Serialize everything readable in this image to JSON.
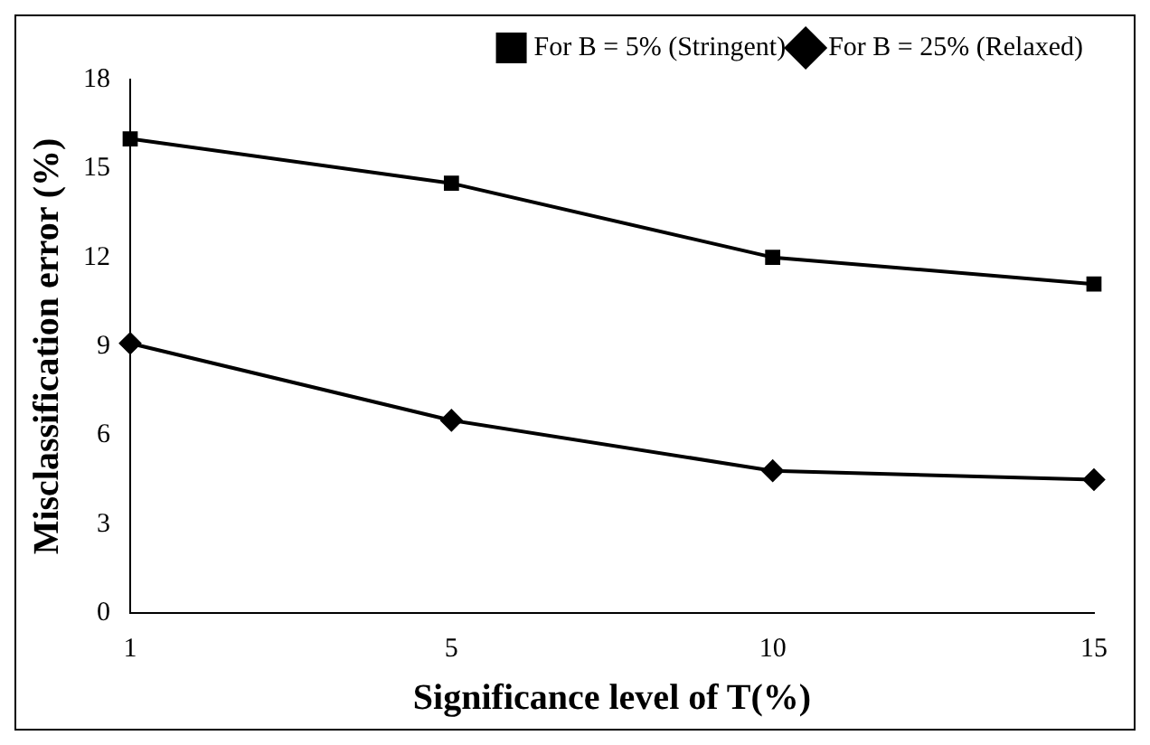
{
  "chart_data": {
    "type": "line",
    "xlabel": "Significance level of T(%)",
    "ylabel": "Misclassification error (%)",
    "categories": [
      "1",
      "5",
      "10",
      "15"
    ],
    "series": [
      {
        "name": "For B = 5% (Stringent)",
        "color": "#000000",
        "marker": "square",
        "values": [
          16,
          14.5,
          12,
          11.1
        ]
      },
      {
        "name": "For B = 25% (Relaxed)",
        "color": "#000000",
        "marker": "diamond",
        "values": [
          9.1,
          6.5,
          4.8,
          4.5
        ]
      }
    ],
    "ylim": [
      0,
      18
    ],
    "yticks": [
      0,
      3,
      6,
      9,
      12,
      15,
      18
    ],
    "grid": false,
    "legend": "top right",
    "line_style": "solid"
  }
}
